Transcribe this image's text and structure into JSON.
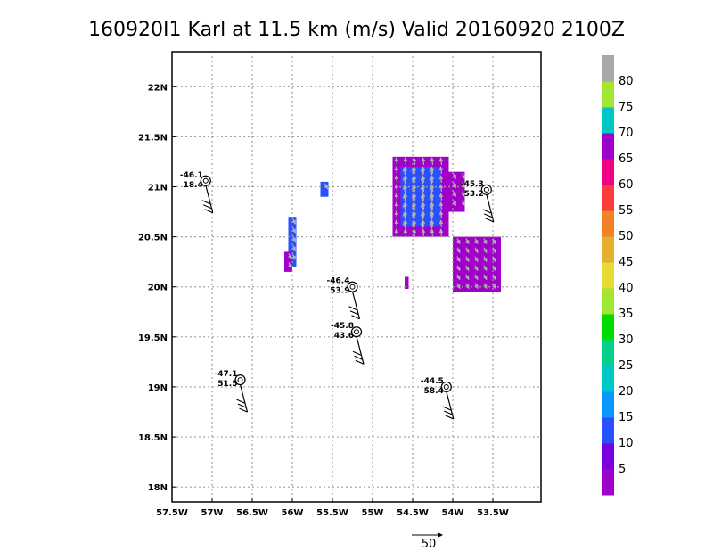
{
  "title": "160920I1 Karl at 11.5 km (m/s) Valid 20160920 2100Z",
  "chart_data": {
    "type": "heatmap",
    "title": "160920I1 Karl at 11.5 km (m/s) Valid 20160920 2100Z",
    "units": "m/s",
    "xlim": [
      -57.5,
      -52.9
    ],
    "ylim": [
      17.85,
      22.35
    ],
    "x_ticks": [
      -57.5,
      -57,
      -56.5,
      -56,
      -55.5,
      -55,
      -54.5,
      -54,
      -53.5
    ],
    "x_tick_labels": [
      "57.5W",
      "57W",
      "56.5W",
      "56W",
      "55.5W",
      "55W",
      "54.5W",
      "54W",
      "53.5W"
    ],
    "y_ticks": [
      18,
      18.5,
      19,
      19.5,
      20,
      20.5,
      21,
      21.5,
      22
    ],
    "y_tick_labels": [
      "18N",
      "18.5N",
      "19N",
      "19.5N",
      "20N",
      "20.5N",
      "21N",
      "21.5N",
      "22N"
    ],
    "grid": true,
    "colorbar": {
      "labels": [
        "5",
        "10",
        "15",
        "20",
        "25",
        "30",
        "35",
        "40",
        "45",
        "50",
        "55",
        "60",
        "65",
        "70",
        "75",
        "80"
      ],
      "colors": [
        "#a000c8",
        "#7a00e0",
        "#2850ff",
        "#0a96ff",
        "#00c8c8",
        "#00d28c",
        "#00dc00",
        "#a0e632",
        "#e6dc32",
        "#e6af2d",
        "#f08228",
        "#fa3c3c",
        "#f00082",
        "#a000c8",
        "#00c8c8",
        "#a0e632",
        "#a8a8a8"
      ]
    },
    "vector_reference": {
      "label": "50"
    },
    "regions": [
      {
        "color": "#a000c8",
        "lon": [
          -54.75,
          -54.05
        ],
        "lat": [
          20.5,
          21.3
        ]
      },
      {
        "color": "#2850ff",
        "lon": [
          -54.65,
          -54.15
        ],
        "lat": [
          20.6,
          21.2
        ]
      },
      {
        "color": "#a000c8",
        "lon": [
          -54.05,
          -53.85
        ],
        "lat": [
          20.75,
          21.15
        ]
      },
      {
        "color": "#a000c8",
        "lon": [
          -54.0,
          -53.4
        ],
        "lat": [
          19.95,
          20.5
        ]
      },
      {
        "color": "#2850ff",
        "lon": [
          -56.05,
          -55.95
        ],
        "lat": [
          20.2,
          20.7
        ]
      },
      {
        "color": "#a000c8",
        "lon": [
          -56.1,
          -56.0
        ],
        "lat": [
          20.15,
          20.35
        ]
      },
      {
        "color": "#2850ff",
        "lon": [
          -55.65,
          -55.55
        ],
        "lat": [
          20.9,
          21.05
        ]
      },
      {
        "color": "#a000c8",
        "lon": [
          -54.6,
          -54.55
        ],
        "lat": [
          19.98,
          20.1
        ]
      }
    ],
    "observations": [
      {
        "lon": -57.08,
        "lat": 21.06,
        "label_top": "-46.1",
        "label_bottom": "18.4"
      },
      {
        "lon": -53.58,
        "lat": 20.97,
        "label_top": "-45.3",
        "label_bottom": "53.2"
      },
      {
        "lon": -55.25,
        "lat": 20.0,
        "label_top": "-46.4",
        "label_bottom": "53.9"
      },
      {
        "lon": -55.2,
        "lat": 19.55,
        "label_top": "-45.8",
        "label_bottom": "43.6"
      },
      {
        "lon": -56.65,
        "lat": 19.07,
        "label_top": "-47.1",
        "label_bottom": "51.5"
      },
      {
        "lon": -54.08,
        "lat": 19.0,
        "label_top": "-44.5",
        "label_bottom": "58.4"
      }
    ]
  }
}
